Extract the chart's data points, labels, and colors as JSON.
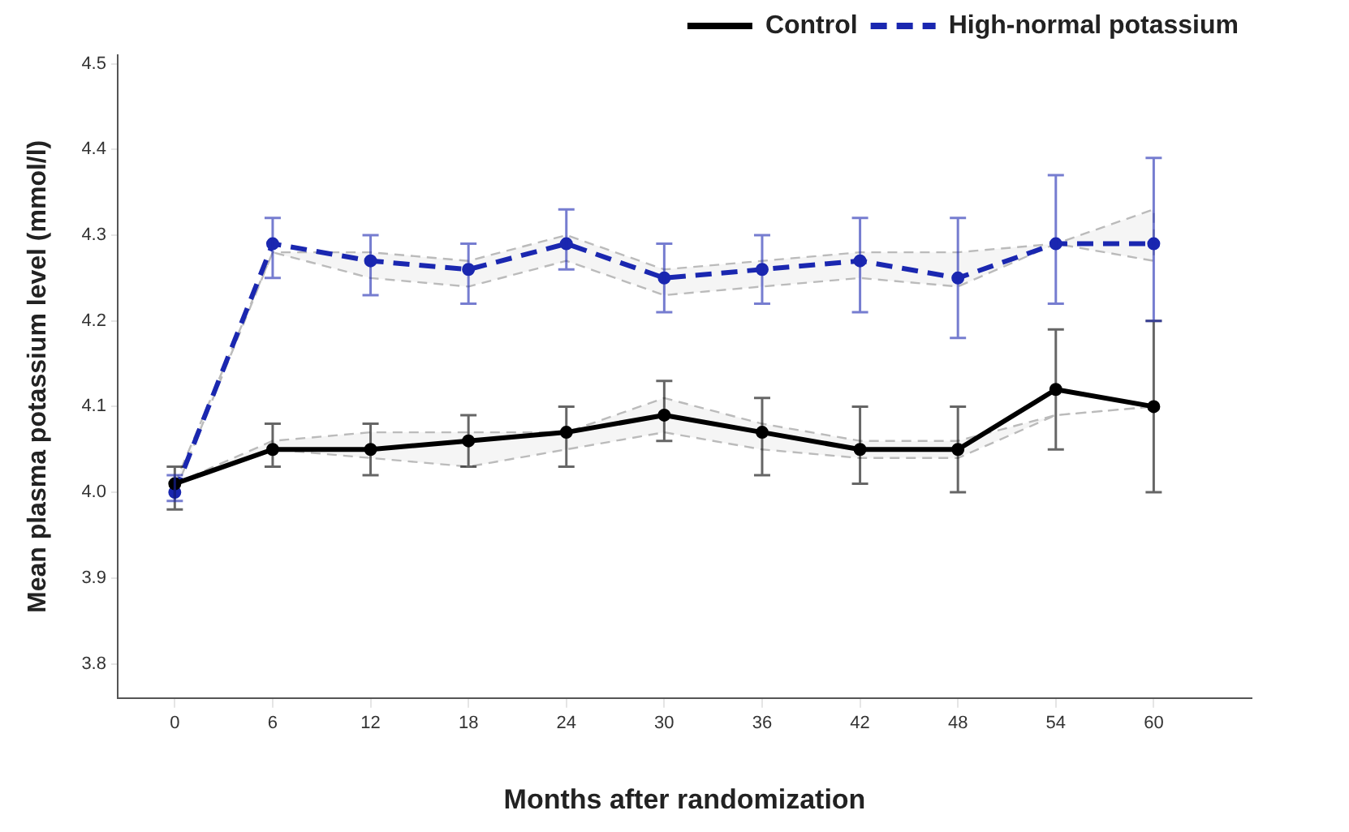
{
  "chart_data": {
    "type": "line",
    "xlabel": "Months after randomization",
    "ylabel": "Mean plasma potassium level (mmol/l)",
    "x": [
      0,
      6,
      12,
      18,
      24,
      30,
      36,
      42,
      48,
      54,
      60
    ],
    "xlim": [
      -3.5,
      66
    ],
    "xticks": [
      0,
      6,
      12,
      18,
      24,
      30,
      36,
      42,
      48,
      54,
      60
    ],
    "ylim": [
      3.76,
      4.51
    ],
    "yticks": [
      3.8,
      3.9,
      {
        "value": 4,
        "label": "4.0"
      },
      4.1,
      4.2,
      4.3,
      4.4,
      4.5
    ],
    "legend": "top right",
    "marker": "circle",
    "grid": false,
    "series": [
      {
        "name": "Control",
        "color": "#000000",
        "line_style": "solid",
        "values": [
          4.01,
          4.05,
          4.05,
          4.06,
          4.07,
          4.09,
          4.07,
          4.05,
          4.05,
          4.12,
          4.1
        ],
        "errors": [
          [
            3.98,
            4.03
          ],
          [
            4.03,
            4.08
          ],
          [
            4.02,
            4.08
          ],
          [
            4.03,
            4.09
          ],
          [
            4.03,
            4.1
          ],
          [
            4.06,
            4.13
          ],
          [
            4.02,
            4.11
          ],
          [
            4.01,
            4.1
          ],
          [
            4.0,
            4.1
          ],
          [
            4.05,
            4.19
          ],
          [
            4.0,
            4.2
          ]
        ],
        "lower": [
          4.01,
          4.05,
          4.04,
          4.03,
          4.05,
          4.07,
          4.05,
          4.04,
          4.04,
          4.09,
          4.1
        ],
        "upper": [
          4.01,
          4.06,
          4.07,
          4.07,
          4.07,
          4.11,
          4.08,
          4.06,
          4.06,
          4.09,
          4.1
        ]
      },
      {
        "name": "High-normal potassium",
        "color": "#1a27b0",
        "line_style": "dashed",
        "values": [
          4.0,
          4.29,
          4.27,
          4.26,
          4.29,
          4.25,
          4.26,
          4.27,
          4.25,
          4.29,
          4.29
        ],
        "errors": [
          [
            3.99,
            4.02
          ],
          [
            4.25,
            4.32
          ],
          [
            4.23,
            4.3
          ],
          [
            4.22,
            4.29
          ],
          [
            4.26,
            4.33
          ],
          [
            4.21,
            4.29
          ],
          [
            4.22,
            4.3
          ],
          [
            4.21,
            4.32
          ],
          [
            4.18,
            4.32
          ],
          [
            4.22,
            4.37
          ],
          [
            4.2,
            4.39
          ]
        ],
        "lower": [
          4.0,
          4.28,
          4.25,
          4.24,
          4.27,
          4.23,
          4.24,
          4.25,
          4.24,
          4.29,
          4.27
        ],
        "upper": [
          4.01,
          4.28,
          4.28,
          4.27,
          4.3,
          4.26,
          4.27,
          4.28,
          4.28,
          4.29,
          4.33
        ]
      }
    ]
  }
}
